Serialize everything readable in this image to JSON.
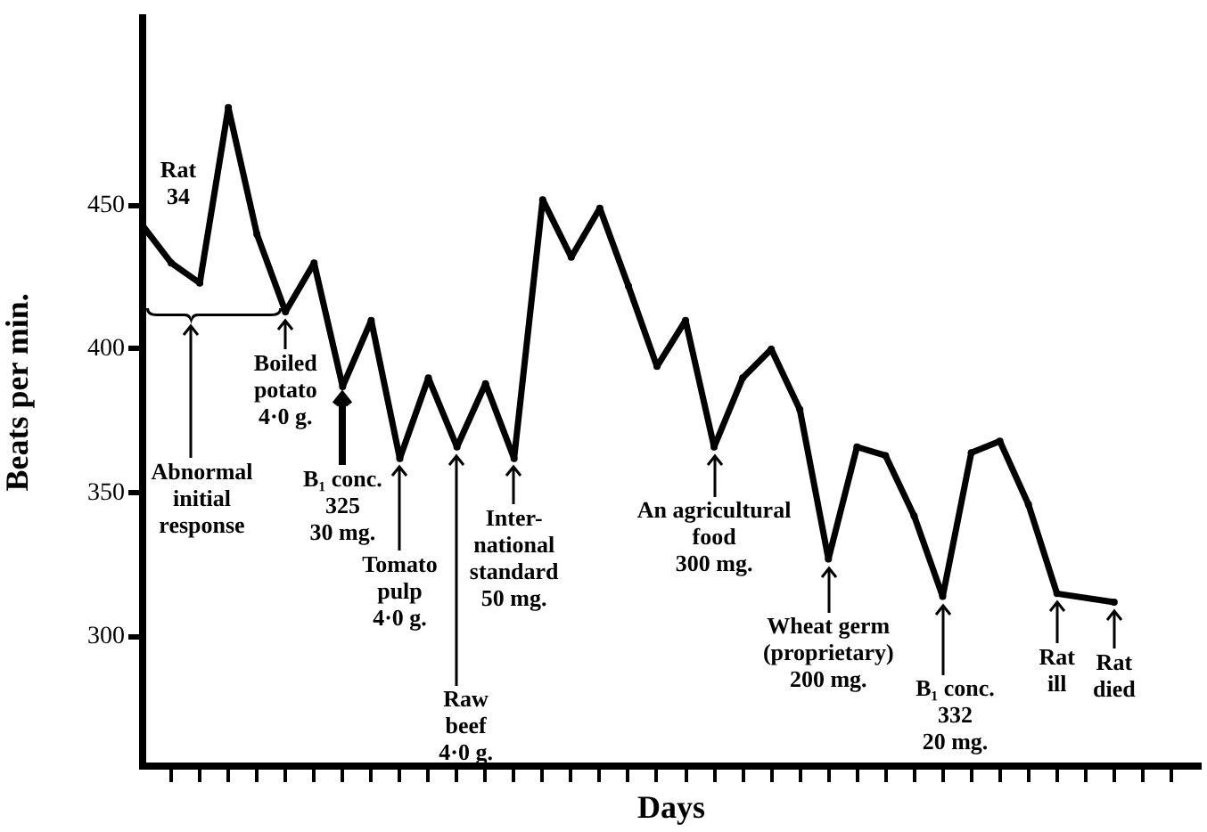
{
  "chart_data": {
    "type": "line",
    "xlabel": "Days",
    "ylabel": "Beats per min.",
    "categories": [
      null,
      null,
      null,
      null,
      null,
      null,
      null,
      null,
      null,
      null,
      null,
      null,
      null,
      null,
      null,
      null,
      null,
      null,
      null,
      null,
      null,
      null,
      null,
      null,
      null,
      null,
      null,
      null,
      null,
      null,
      null,
      null,
      null,
      null,
      null
    ],
    "series": [
      {
        "name": "Rat 34",
        "color": "#000000",
        "values": [
          443,
          430,
          423,
          484,
          440,
          413,
          430,
          387,
          410,
          362,
          390,
          366,
          388,
          362,
          452,
          432,
          449,
          422,
          394,
          410,
          366,
          390,
          400,
          379,
          327,
          366,
          363,
          342,
          314,
          364,
          368,
          346,
          315,
          null,
          312
        ]
      }
    ],
    "ylim": [
      255,
      515
    ],
    "yticks": [
      300,
      350,
      400,
      450
    ],
    "grid": false,
    "legend": false,
    "marker": "circle",
    "line_style": "solid",
    "annotations": [
      "Abnormal initial response",
      "Boiled potato 4·0 g.",
      "B₁ conc. 325 30 mg.",
      "Tomato pulp 4·0 g.",
      "Raw beef 4·0 g.",
      "Inter-national standard 50 mg.",
      "An agricultural food 300 mg.",
      "Wheat germ (proprietary) 200 mg.",
      "B₁ conc. 332 20 mg.",
      "Rat ill",
      "Rat died"
    ]
  }
}
